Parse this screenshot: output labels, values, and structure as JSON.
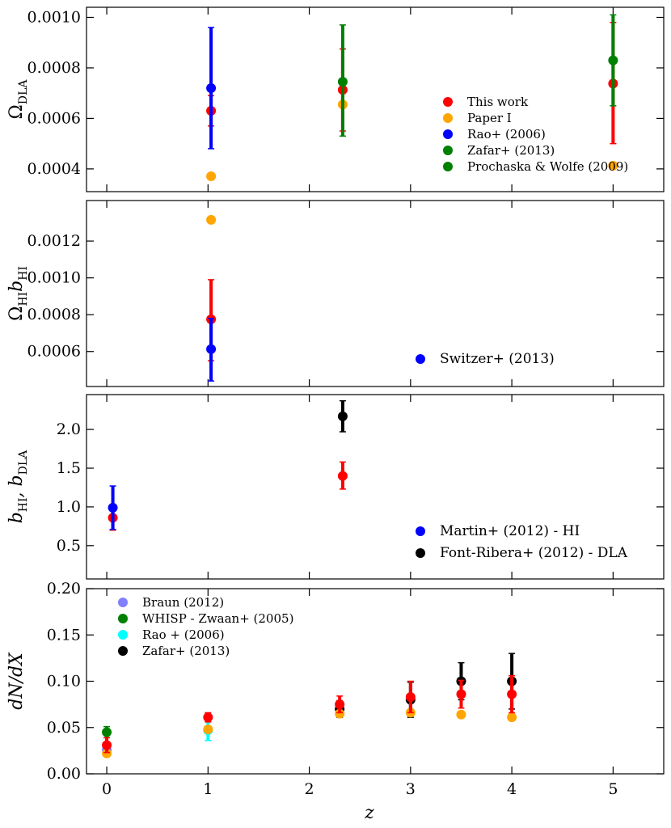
{
  "figure": {
    "xlabel": "z"
  },
  "chart_data": [
    {
      "type": "scatter",
      "title": "",
      "ylabel": "Ω",
      "ylabel_sub": "DLA",
      "xlim": [
        -0.2,
        5.5
      ],
      "ylim": [
        0.00031,
        0.00104
      ],
      "xticks": [
        0,
        1,
        2,
        3,
        4,
        5
      ],
      "show_xtick_labels": false,
      "yticks": [
        {
          "v": 0.0004,
          "label": "0.0004"
        },
        {
          "v": 0.0006,
          "label": "0.0006"
        },
        {
          "v": 0.0008,
          "label": "0.0008"
        },
        {
          "v": 0.001,
          "label": "0.0010"
        }
      ],
      "legend": {
        "position": "lower-right",
        "size": "small"
      },
      "series": [
        {
          "name": "This work",
          "color": "#ff0000",
          "points": [
            {
              "x": 1.03,
              "y": 0.00063,
              "lo": 0.00057,
              "hi": 0.00069
            },
            {
              "x": 2.33,
              "y": 0.000713,
              "lo": 0.00055,
              "hi": 0.000875
            },
            {
              "x": 5.0,
              "y": 0.000738,
              "lo": 0.0005,
              "hi": 0.00098
            }
          ]
        },
        {
          "name": "Paper I",
          "color": "#ffa500",
          "points": [
            {
              "x": 1.03,
              "y": 0.000371
            },
            {
              "x": 2.33,
              "y": 0.000655
            },
            {
              "x": 5.0,
              "y": 0.000413
            }
          ]
        },
        {
          "name": "Rao+ (2006)",
          "color": "#0000ff",
          "points": [
            {
              "x": 1.03,
              "y": 0.00072,
              "lo": 0.00048,
              "hi": 0.00096
            }
          ]
        },
        {
          "name": "Zafar+ (2013)",
          "color": "#008000",
          "points": [
            {
              "x": 2.33,
              "y": 0.000745,
              "lo": 0.00053,
              "hi": 0.00097
            },
            {
              "x": 5.0,
              "y": 0.00083,
              "lo": 0.00065,
              "hi": 0.00101
            }
          ]
        },
        {
          "name": "Prochaska & Wolfe (2009)",
          "color": "#008000",
          "points": []
        }
      ]
    },
    {
      "type": "scatter",
      "title": "",
      "ylabel": "Ω",
      "ylabel_sub": "HI",
      "ylabel_mid": "b",
      "ylabel_sub2": "HI",
      "xlim": [
        -0.2,
        5.5
      ],
      "ylim": [
        0.00041,
        0.00142
      ],
      "xticks": [
        0,
        1,
        2,
        3,
        4,
        5
      ],
      "show_xtick_labels": false,
      "yticks": [
        {
          "v": 0.0006,
          "label": "0.0006"
        },
        {
          "v": 0.0008,
          "label": "0.0008"
        },
        {
          "v": 0.001,
          "label": "0.0010"
        },
        {
          "v": 0.0012,
          "label": "0.0012"
        }
      ],
      "legend": {
        "position": "lower-right",
        "size": "large"
      },
      "series": [
        {
          "name": "This work",
          "color": "#ff0000",
          "legend": false,
          "points": [
            {
              "x": 1.03,
              "y": 0.000775,
              "lo": 0.00055,
              "hi": 0.00099
            }
          ]
        },
        {
          "name": "Paper I",
          "color": "#ffa500",
          "legend": false,
          "points": [
            {
              "x": 1.03,
              "y": 0.001315
            }
          ]
        },
        {
          "name": "Switzer+ (2013)",
          "color": "#0000ff",
          "points": [
            {
              "x": 1.03,
              "y": 0.000613,
              "lo": 0.00044,
              "hi": 0.00078
            }
          ]
        }
      ]
    },
    {
      "type": "scatter",
      "title": "",
      "ylabel": "b",
      "ylabel_sub": "HI",
      "ylabel_mid": ", b",
      "ylabel_sub2": "DLA",
      "xlim": [
        -0.2,
        5.5
      ],
      "ylim": [
        0.07,
        2.45
      ],
      "xticks": [
        0,
        1,
        2,
        3,
        4,
        5
      ],
      "show_xtick_labels": false,
      "yticks": [
        {
          "v": 0.5,
          "label": "0.5"
        },
        {
          "v": 1.0,
          "label": "1.0"
        },
        {
          "v": 1.5,
          "label": "1.5"
        },
        {
          "v": 2.0,
          "label": "2.0"
        }
      ],
      "legend": {
        "position": "lower-right",
        "size": "large"
      },
      "series": [
        {
          "name": "This work",
          "color": "#ff0000",
          "legend": false,
          "points": [
            {
              "x": 0.06,
              "y": 0.86,
              "lo": 0.7,
              "hi": 1.02
            },
            {
              "x": 2.33,
              "y": 1.4,
              "lo": 1.23,
              "hi": 1.58
            }
          ]
        },
        {
          "name": "Martin+ (2012) - HI",
          "color": "#0000ff",
          "points": [
            {
              "x": 0.06,
              "y": 0.99,
              "lo": 0.71,
              "hi": 1.27
            }
          ]
        },
        {
          "name": "Font-Ribera+ (2012) - DLA",
          "color": "#000000",
          "points": [
            {
              "x": 2.33,
              "y": 2.17,
              "lo": 1.97,
              "hi": 2.37
            }
          ]
        }
      ]
    },
    {
      "type": "scatter",
      "title": "",
      "xlabel": "z",
      "ylabel": "dN/dX",
      "xlim": [
        -0.2,
        5.5
      ],
      "ylim": [
        0.0,
        0.2
      ],
      "xticks": [
        0,
        1,
        2,
        3,
        4,
        5
      ],
      "show_xtick_labels": true,
      "yticks": [
        {
          "v": 0.0,
          "label": "0.00"
        },
        {
          "v": 0.05,
          "label": "0.05"
        },
        {
          "v": 0.1,
          "label": "0.10"
        },
        {
          "v": 0.15,
          "label": "0.15"
        },
        {
          "v": 0.2,
          "label": "0.20"
        }
      ],
      "legend": {
        "position": "upper-left",
        "size": "small"
      },
      "series": [
        {
          "name": "Braun (2012)",
          "color": "#8080ff",
          "points": [
            {
              "x": 0.0,
              "y": 0.026
            }
          ]
        },
        {
          "name": "WHISP - Zwaan+ (2005)",
          "color": "#008000",
          "points": [
            {
              "x": 0.0,
              "y": 0.045,
              "lo": 0.039,
              "hi": 0.051
            }
          ]
        },
        {
          "name": "Rao + (2006)",
          "color": "#00ffff",
          "points": [
            {
              "x": 1.0,
              "y": 0.047,
              "lo": 0.036,
              "hi": 0.058
            }
          ]
        },
        {
          "name": "Zafar+ (2013)",
          "color": "#000000",
          "points": [
            {
              "x": 2.3,
              "y": 0.07,
              "lo": 0.061,
              "hi": 0.079
            },
            {
              "x": 3.0,
              "y": 0.08,
              "lo": 0.061,
              "hi": 0.099
            },
            {
              "x": 3.5,
              "y": 0.1,
              "lo": 0.08,
              "hi": 0.12
            },
            {
              "x": 4.0,
              "y": 0.1,
              "lo": 0.07,
              "hi": 0.13
            }
          ]
        },
        {
          "name": "Paper I",
          "color": "#ffa500",
          "legend": false,
          "points": [
            {
              "x": 0.0,
              "y": 0.022
            },
            {
              "x": 1.0,
              "y": 0.048
            },
            {
              "x": 2.3,
              "y": 0.065
            },
            {
              "x": 3.0,
              "y": 0.066
            },
            {
              "x": 3.5,
              "y": 0.064
            },
            {
              "x": 4.0,
              "y": 0.061
            }
          ]
        },
        {
          "name": "This work",
          "color": "#ff0000",
          "legend": false,
          "points": [
            {
              "x": 0.0,
              "y": 0.031,
              "lo": 0.023,
              "hi": 0.039
            },
            {
              "x": 1.0,
              "y": 0.061,
              "lo": 0.056,
              "hi": 0.066
            },
            {
              "x": 2.3,
              "y": 0.075,
              "lo": 0.066,
              "hi": 0.084
            },
            {
              "x": 3.0,
              "y": 0.083,
              "lo": 0.066,
              "hi": 0.1
            },
            {
              "x": 3.5,
              "y": 0.086,
              "lo": 0.071,
              "hi": 0.101
            },
            {
              "x": 4.0,
              "y": 0.086,
              "lo": 0.066,
              "hi": 0.106
            }
          ]
        }
      ]
    }
  ]
}
